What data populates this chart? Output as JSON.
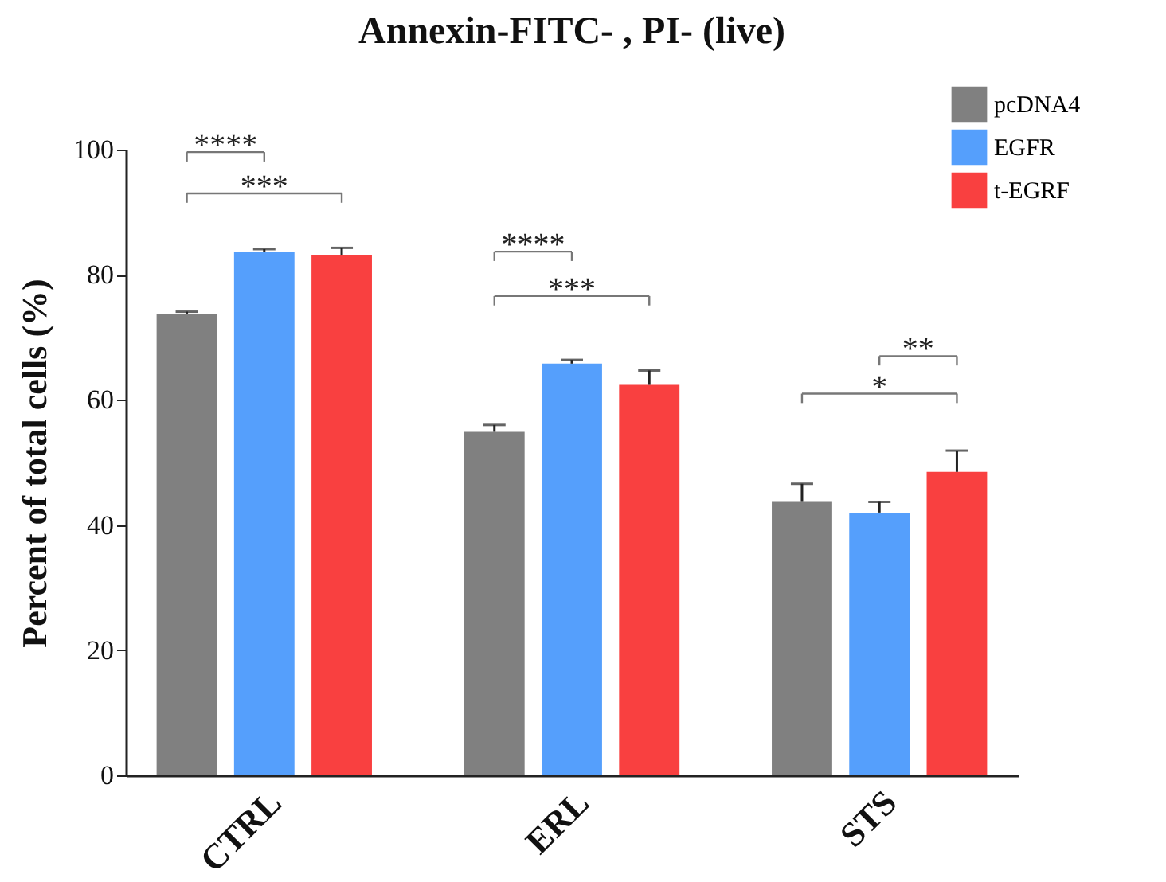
{
  "chart_data": {
    "type": "bar",
    "title": "Annexin-FITC- , PI- (live)",
    "ylabel": "Percent of total cells (%)",
    "categories": [
      "CTRL",
      "ERL",
      "STS"
    ],
    "series": [
      {
        "name": "pcDNA4",
        "color": "#808080",
        "values": [
          73.8,
          54.9,
          43.7
        ],
        "errors": [
          [
            73.8,
            74.1
          ],
          [
            54.9,
            56.0
          ],
          [
            43.7,
            46.6
          ]
        ]
      },
      {
        "name": "EGFR",
        "color": "#559ffc",
        "values": [
          83.6,
          65.8,
          42.0
        ],
        "errors": [
          [
            83.6,
            84.1
          ],
          [
            65.8,
            66.4
          ],
          [
            42.0,
            43.7
          ]
        ]
      },
      {
        "name": "t-EGRF",
        "color": "#f94040",
        "values": [
          83.2,
          62.4,
          48.5
        ],
        "errors": [
          [
            83.2,
            84.3
          ],
          [
            62.4,
            64.7
          ],
          [
            48.5,
            51.9
          ]
        ]
      }
    ],
    "ylim": [
      0,
      100
    ],
    "yticks": [
      0,
      20,
      40,
      60,
      80,
      100
    ],
    "grid": false,
    "legend": "top right",
    "annotations": [
      "****",
      "***",
      "****",
      "***",
      "**",
      "*"
    ]
  }
}
